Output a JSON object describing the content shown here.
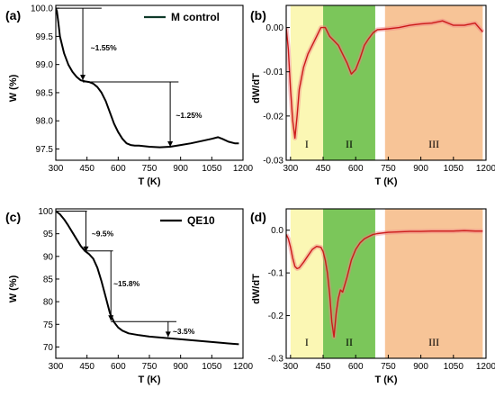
{
  "chart_data": [
    {
      "panel_label": "(a)",
      "type": "line",
      "xlabel": "T (K)",
      "ylabel": "W (%)",
      "xlim": [
        300,
        1200
      ],
      "ylim": [
        97.3,
        100.05
      ],
      "xticks": [
        300,
        450,
        600,
        750,
        900,
        1050,
        1200
      ],
      "yticks": [
        97.5,
        98.0,
        98.5,
        99.0,
        99.5,
        100.0
      ],
      "ytick_labels": [
        "97.5",
        "98.0",
        "98.5",
        "99.0",
        "99.5",
        "100.0"
      ],
      "legend": "M control",
      "legend_position": "top-right",
      "x": [
        300,
        305,
        312,
        320,
        340,
        360,
        380,
        400,
        420,
        440,
        460,
        480,
        500,
        520,
        540,
        560,
        580,
        600,
        620,
        640,
        660,
        680,
        700,
        750,
        800,
        850,
        900,
        950,
        1000,
        1050,
        1080,
        1100,
        1130,
        1160,
        1180
      ],
      "y": [
        100.0,
        99.95,
        99.75,
        99.5,
        99.2,
        99.0,
        98.87,
        98.78,
        98.72,
        98.7,
        98.69,
        98.66,
        98.6,
        98.5,
        98.35,
        98.15,
        97.95,
        97.8,
        97.68,
        97.6,
        97.57,
        97.56,
        97.56,
        97.54,
        97.53,
        97.54,
        97.57,
        97.6,
        97.64,
        97.68,
        97.71,
        97.68,
        97.63,
        97.6,
        97.6
      ],
      "annotations": [
        {
          "text": "~1.55%",
          "x": 450,
          "y": 99.3
        },
        {
          "text": "~1.25%",
          "x": 860,
          "y": 98.1
        }
      ]
    },
    {
      "panel_label": "(b)",
      "type": "line",
      "xlabel": "T (K)",
      "ylabel": "dW/dT",
      "xlim": [
        280,
        1200
      ],
      "ylim": [
        -0.03,
        0.005
      ],
      "xticks": [
        300,
        450,
        600,
        750,
        900,
        1050,
        1200
      ],
      "yticks": [
        -0.03,
        -0.02,
        -0.01,
        0.0
      ],
      "ytick_labels": [
        "-0.03",
        "-0.02",
        "-0.01",
        "0.00"
      ],
      "regions": [
        {
          "label": "I",
          "x0": 300,
          "x1": 450,
          "color": "#fbf7b4"
        },
        {
          "label": "II",
          "x0": 450,
          "x1": 690,
          "color": "#7bc65a"
        },
        {
          "label": "III",
          "x0": 735,
          "x1": 1185,
          "color": "#f7c497"
        }
      ],
      "x": [
        280,
        290,
        300,
        310,
        320,
        330,
        340,
        360,
        380,
        400,
        420,
        440,
        460,
        480,
        500,
        520,
        540,
        560,
        580,
        600,
        620,
        640,
        660,
        680,
        700,
        750,
        800,
        850,
        900,
        950,
        1000,
        1050,
        1100,
        1150,
        1185
      ],
      "y": [
        0.0,
        -0.005,
        -0.014,
        -0.021,
        -0.025,
        -0.02,
        -0.014,
        -0.009,
        -0.006,
        -0.004,
        -0.002,
        0.0,
        0.0,
        -0.002,
        -0.003,
        -0.004,
        -0.006,
        -0.008,
        -0.0105,
        -0.0095,
        -0.007,
        -0.004,
        -0.0025,
        -0.0012,
        -0.0005,
        -0.0003,
        0.0,
        0.0005,
        0.0008,
        0.001,
        0.0015,
        0.0005,
        0.0005,
        0.001,
        -0.001
      ]
    },
    {
      "panel_label": "(c)",
      "type": "line",
      "xlabel": "T (K)",
      "ylabel": "W (%)",
      "xlim": [
        300,
        1200
      ],
      "ylim": [
        67.5,
        100.5
      ],
      "xticks": [
        300,
        450,
        600,
        750,
        900,
        1050,
        1200
      ],
      "yticks": [
        70,
        75,
        80,
        85,
        90,
        95,
        100
      ],
      "ytick_labels": [
        "70",
        "75",
        "80",
        "85",
        "90",
        "95",
        "100"
      ],
      "legend": "QE10",
      "legend_position": "top-right",
      "x": [
        300,
        320,
        340,
        360,
        380,
        400,
        420,
        440,
        460,
        480,
        500,
        520,
        540,
        560,
        580,
        600,
        620,
        650,
        700,
        750,
        800,
        850,
        900,
        950,
        1000,
        1050,
        1100,
        1150,
        1180
      ],
      "y": [
        100.0,
        99.3,
        98.2,
        96.8,
        95.3,
        93.8,
        92.3,
        91.2,
        90.5,
        89.5,
        87.5,
        84.5,
        81.0,
        77.5,
        75.5,
        74.3,
        73.6,
        73.0,
        72.6,
        72.3,
        72.1,
        71.9,
        71.7,
        71.5,
        71.3,
        71.1,
        70.9,
        70.7,
        70.6
      ],
      "annotations": [
        {
          "text": "~9.5%",
          "x": 455,
          "y": 95.0
        },
        {
          "text": "~15.8%",
          "x": 560,
          "y": 84.0
        },
        {
          "text": "~3.5%",
          "x": 845,
          "y": 73.5
        }
      ]
    },
    {
      "panel_label": "(d)",
      "type": "line",
      "xlabel": "T (K)",
      "ylabel": "dW/dT",
      "xlim": [
        280,
        1200
      ],
      "ylim": [
        -0.3,
        0.05
      ],
      "xticks": [
        300,
        450,
        600,
        750,
        900,
        1050,
        1200
      ],
      "yticks": [
        -0.3,
        -0.2,
        -0.1,
        0.0
      ],
      "ytick_labels": [
        "-0.3",
        "-0.2",
        "-0.1",
        "0.0"
      ],
      "regions": [
        {
          "label": "I",
          "x0": 300,
          "x1": 450,
          "color": "#fbf7b4"
        },
        {
          "label": "II",
          "x0": 450,
          "x1": 690,
          "color": "#7bc65a"
        },
        {
          "label": "III",
          "x0": 735,
          "x1": 1185,
          "color": "#f7c497"
        }
      ],
      "x": [
        280,
        290,
        300,
        310,
        320,
        330,
        340,
        360,
        380,
        400,
        420,
        440,
        450,
        460,
        470,
        480,
        490,
        500,
        510,
        520,
        530,
        540,
        560,
        580,
        600,
        620,
        640,
        660,
        680,
        700,
        750,
        800,
        850,
        900,
        950,
        1000,
        1050,
        1100,
        1150,
        1185
      ],
      "y": [
        -0.01,
        -0.02,
        -0.04,
        -0.065,
        -0.085,
        -0.09,
        -0.088,
        -0.075,
        -0.06,
        -0.045,
        -0.038,
        -0.04,
        -0.05,
        -0.07,
        -0.1,
        -0.15,
        -0.215,
        -0.25,
        -0.195,
        -0.16,
        -0.14,
        -0.145,
        -0.11,
        -0.07,
        -0.045,
        -0.03,
        -0.02,
        -0.015,
        -0.01,
        -0.008,
        -0.005,
        -0.004,
        -0.003,
        -0.003,
        -0.002,
        -0.002,
        -0.002,
        -0.001,
        -0.002,
        -0.002
      ]
    }
  ]
}
